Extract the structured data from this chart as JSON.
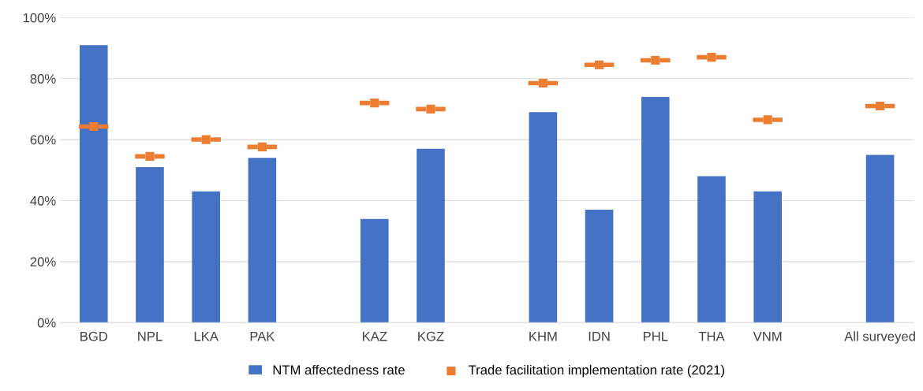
{
  "chart_data": {
    "type": "bar",
    "categories": [
      "BGD",
      "NPL",
      "LKA",
      "PAK",
      null,
      "KAZ",
      "KGZ",
      null,
      "KHM",
      "IDN",
      "PHL",
      "THA",
      "VNM",
      null,
      "All surveyed"
    ],
    "series": [
      {
        "name": "NTM affectedness rate",
        "color": "#4472c4",
        "values": [
          91,
          51,
          43,
          54,
          null,
          34,
          57,
          null,
          69,
          37,
          74,
          48,
          43,
          null,
          55
        ]
      },
      {
        "name": "Trade facilitation implementation rate (2021)",
        "type": "scatter",
        "color": "#ed7d31",
        "values": [
          64.3,
          54.5,
          60,
          57.6,
          null,
          72,
          70,
          null,
          78.5,
          84.5,
          86,
          87,
          66.5,
          null,
          71
        ]
      }
    ],
    "ylim": [
      0,
      100
    ],
    "yticks": [
      {
        "value": 0,
        "label": "0%"
      },
      {
        "value": 20,
        "label": "20%"
      },
      {
        "value": 40,
        "label": "40%"
      },
      {
        "value": 60,
        "label": "60%"
      },
      {
        "value": 80,
        "label": "80%"
      },
      {
        "value": 100,
        "label": "100%"
      }
    ],
    "grid": "y",
    "legend": "bottom"
  }
}
